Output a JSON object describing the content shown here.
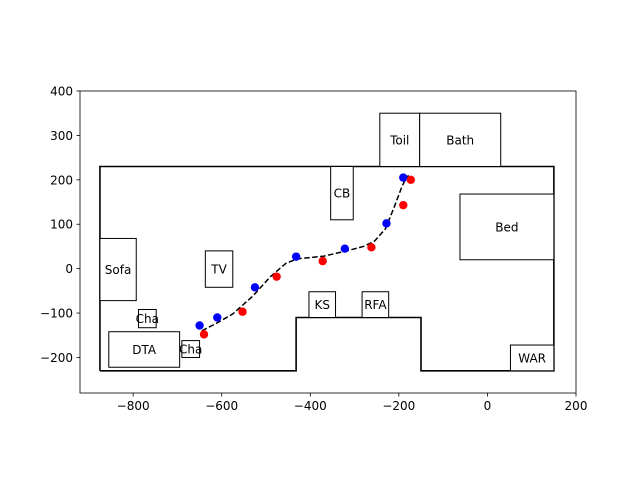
{
  "chart_data": {
    "type": "scatter",
    "xlim": [
      -920,
      200
    ],
    "ylim": [
      -280,
      400
    ],
    "x_ticks": [
      -800,
      -600,
      -400,
      -200,
      0,
      200
    ],
    "y_ticks": [
      -200,
      -100,
      0,
      100,
      200,
      300,
      400
    ],
    "x_tick_labels": [
      "−800",
      "−600",
      "−400",
      "−200",
      "0",
      "200"
    ],
    "y_tick_labels": [
      "−200",
      "−100",
      "0",
      "100",
      "200",
      "300",
      "400"
    ],
    "walls": [
      [
        [
          -875,
          -230
        ],
        [
          -875,
          230
        ],
        [
          150,
          230
        ],
        [
          150,
          -230
        ],
        [
          -150,
          -230
        ],
        [
          -150,
          -110
        ],
        [
          -432,
          -110
        ],
        [
          -432,
          -230
        ],
        [
          -875,
          -230
        ]
      ]
    ],
    "furniture": [
      {
        "label": "Sofa",
        "x0": -875,
        "y0": -72,
        "x1": -793,
        "y1": 68
      },
      {
        "label": "Cha",
        "x0": -788,
        "y0": -133,
        "x1": -748,
        "y1": -92
      },
      {
        "label": "DTA",
        "x0": -855,
        "y0": -222,
        "x1": -695,
        "y1": -142
      },
      {
        "label": "Cha",
        "x0": -690,
        "y0": -200,
        "x1": -650,
        "y1": -162
      },
      {
        "label": "TV",
        "x0": -637,
        "y0": -42,
        "x1": -575,
        "y1": 40
      },
      {
        "label": "CB",
        "x0": -354,
        "y0": 110,
        "x1": -303,
        "y1": 230
      },
      {
        "label": "KS",
        "x0": -403,
        "y0": -110,
        "x1": -343,
        "y1": -52
      },
      {
        "label": "RFA",
        "x0": -283,
        "y0": -110,
        "x1": -223,
        "y1": -52
      },
      {
        "label": "Toil",
        "x0": -243,
        "y0": 230,
        "x1": -153,
        "y1": 350
      },
      {
        "label": "Bath",
        "x0": -153,
        "y0": 230,
        "x1": 30,
        "y1": 350
      },
      {
        "label": "Bed",
        "x0": -62,
        "y0": 20,
        "x1": 150,
        "y1": 168
      },
      {
        "label": "WAR",
        "x0": 52,
        "y0": -230,
        "x1": 150,
        "y1": -172
      }
    ],
    "path": {
      "x": [
        -645,
        -610,
        -575,
        -530,
        -490,
        -455,
        -430,
        -400,
        -370,
        -340,
        -310,
        -280,
        -255,
        -230,
        -210,
        -193,
        -183,
        -178
      ],
      "y": [
        -140,
        -122,
        -102,
        -62,
        -18,
        12,
        22,
        25,
        28,
        35,
        42,
        50,
        62,
        90,
        140,
        185,
        205,
        210
      ]
    },
    "series": [
      {
        "color": "#0000ff",
        "x": [
          -650,
          -610,
          -525,
          -432,
          -322,
          -228,
          -190
        ],
        "y": [
          -128,
          -110,
          -42,
          27,
          45,
          102,
          205
        ]
      },
      {
        "color": "#ff0000",
        "x": [
          -640,
          -553,
          -476,
          -372,
          -262,
          -190,
          -173
        ],
        "y": [
          -148,
          -97,
          -18,
          17,
          48,
          143,
          200
        ]
      }
    ]
  }
}
